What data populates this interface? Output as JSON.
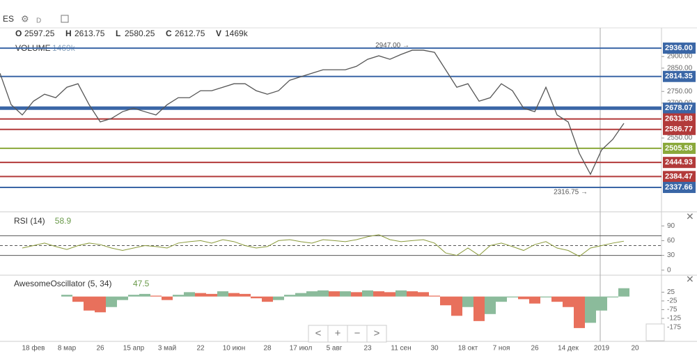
{
  "header": {
    "symbol": "ES",
    "interval": "D",
    "ohlcv": [
      {
        "key": "O",
        "value": "2597.25"
      },
      {
        "key": "H",
        "value": "2613.75"
      },
      {
        "key": "L",
        "value": "2580.25"
      },
      {
        "key": "C",
        "value": "2612.75"
      },
      {
        "key": "V",
        "value": "1469k"
      }
    ],
    "volume_label": "VOLUME",
    "volume_value": "1469k"
  },
  "nav_buttons": [
    "<",
    "+",
    "−",
    ">"
  ],
  "chart_data": [
    {
      "type": "line",
      "name": "price",
      "categories": [
        null,
        null,
        null,
        "18 фев",
        null,
        null,
        "8 мар",
        null,
        null,
        "26",
        null,
        null,
        "15 апр",
        null,
        null,
        "3 май",
        null,
        null,
        "22",
        null,
        null,
        "10 июн",
        null,
        null,
        "28",
        null,
        null,
        "17 июл",
        null,
        null,
        "5 авг",
        null,
        null,
        "23",
        null,
        null,
        "11 сен",
        null,
        null,
        "30",
        null,
        null,
        "18 окт",
        null,
        null,
        "7 ноя",
        null,
        null,
        "26",
        null,
        null,
        "14 дек",
        null,
        null,
        "2019",
        null,
        null,
        "20"
      ],
      "values": [
        2828,
        2693,
        2649,
        2708,
        2738,
        2723,
        2768,
        2783,
        2693,
        2619,
        2634,
        2663,
        2678,
        2663,
        2649,
        2693,
        2723,
        2723,
        2753,
        2753,
        2768,
        2783,
        2783,
        2753,
        2738,
        2753,
        2798,
        2813,
        2828,
        2843,
        2843,
        2843,
        2858,
        2888,
        2903,
        2888,
        2909,
        2927,
        2927,
        2918,
        2843,
        2768,
        2783,
        2708,
        2723,
        2783,
        2753,
        2678,
        2663,
        2768,
        2649,
        2619,
        2484,
        2394,
        2499,
        2544,
        2613,
        null
      ],
      "color": "#555555",
      "ylim": [
        2245,
        3023
      ],
      "yticks": [
        {
          "value": 2900,
          "label": "2900.00"
        },
        {
          "value": 2850,
          "label": "2850.00"
        },
        {
          "value": 2750,
          "label": "2750.00"
        },
        {
          "value": 2700,
          "label": "2700.00"
        },
        {
          "value": 2550,
          "label": "2550.00"
        }
      ],
      "levels": [
        {
          "value": 2936,
          "label": "2936.00",
          "color": "#3a66a6"
        },
        {
          "value": 2814.35,
          "label": "2814.35",
          "color": "#3a66a6"
        },
        {
          "value": 2678.07,
          "label": "2678.07",
          "color": "#3a66a6"
        },
        {
          "value": 2631.88,
          "label": "2631.88",
          "color": "#b23a3a"
        },
        {
          "value": 2586.77,
          "label": "2586.77",
          "color": "#b23a3a"
        },
        {
          "value": 2505.58,
          "label": "2505.58",
          "color": "#8aa83a"
        },
        {
          "value": 2444.93,
          "label": "2444.93",
          "color": "#b23a3a"
        },
        {
          "value": 2384.47,
          "label": "2384.47",
          "color": "#b23a3a"
        },
        {
          "value": 2337.66,
          "label": "2337.66",
          "color": "#3a66a6"
        }
      ],
      "annotations": [
        {
          "text": "2947.00 →",
          "value": 2947
        },
        {
          "text": "2316.75 →",
          "value": 2316.75
        }
      ]
    },
    {
      "type": "line",
      "name": "rsi",
      "title": "RSI (14)",
      "last": "58.9",
      "color": "#8a9a3a",
      "ylim": [
        -6,
        113
      ],
      "yticks": [
        90,
        60,
        30,
        0
      ],
      "reference_lines": [
        70,
        50,
        30
      ],
      "values": [
        null,
        null,
        45,
        50,
        55,
        48,
        42,
        50,
        55,
        52,
        45,
        40,
        45,
        50,
        48,
        45,
        55,
        58,
        60,
        55,
        62,
        58,
        50,
        45,
        48,
        60,
        62,
        58,
        55,
        62,
        60,
        58,
        62,
        68,
        72,
        62,
        58,
        60,
        62,
        55,
        35,
        30,
        45,
        30,
        50,
        55,
        48,
        40,
        52,
        58,
        45,
        40,
        28,
        45,
        50,
        55,
        58.9,
        null
      ]
    },
    {
      "type": "bar",
      "name": "ao",
      "title": "AwesomeOscillator (5, 34)",
      "last": "47.5",
      "colors": [
        "#8bbb9b",
        "#e8705c"
      ],
      "ylim": [
        -248,
        110
      ],
      "yticks": [
        25,
        -25,
        -75,
        -125,
        -175
      ],
      "values": [
        null,
        null,
        null,
        null,
        null,
        null,
        10,
        -30,
        -80,
        -90,
        -60,
        -20,
        10,
        15,
        5,
        -20,
        10,
        25,
        20,
        15,
        30,
        20,
        15,
        -10,
        -30,
        -20,
        10,
        20,
        30,
        35,
        30,
        30,
        25,
        35,
        30,
        25,
        35,
        30,
        25,
        5,
        -50,
        -110,
        -60,
        -140,
        -100,
        -30,
        -5,
        -15,
        -40,
        -5,
        -30,
        -60,
        -180,
        -150,
        -80,
        -5,
        47.5,
        null
      ]
    }
  ]
}
